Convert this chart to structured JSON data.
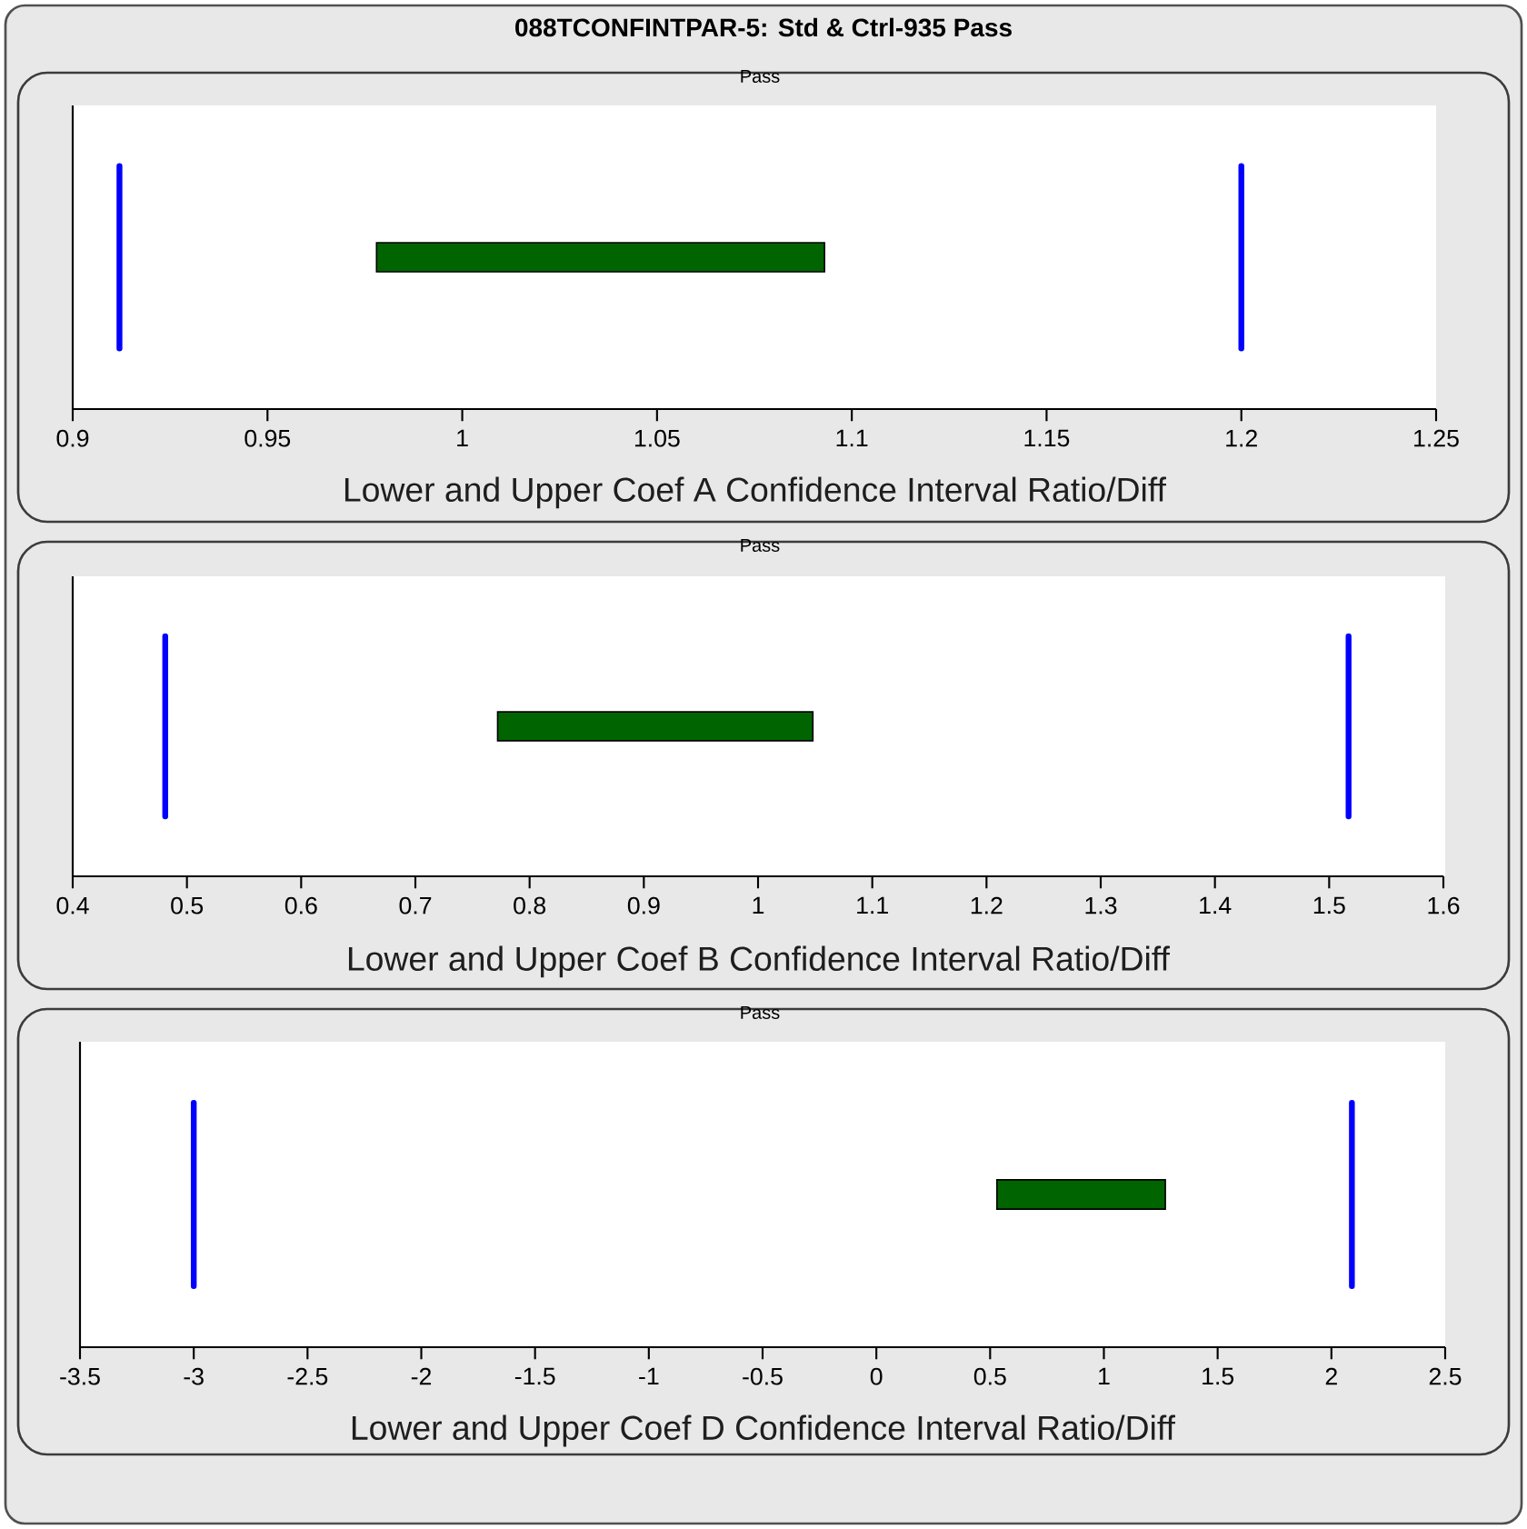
{
  "chart_data": [
    {
      "type": "bar",
      "orientation": "horizontal",
      "title": "088TCONFINTPAR-5: Std & Ctrl-935 Pass",
      "subtitle": "Pass",
      "xlabel": "Lower and Upper Coef A Confidence Interval Ratio/Diff",
      "categories": [
        null
      ],
      "base": [
        0.978
      ],
      "values": [
        0.115
      ],
      "color": "#006400",
      "xlim": [
        0.9,
        1.25
      ],
      "xticks": [
        0.9,
        0.95,
        1,
        1.05,
        1.1,
        1.15,
        1.2,
        1.25
      ],
      "tick_labels": "x",
      "ref_lines": [
        {
          "axis": "x",
          "value": 0.912,
          "color": "#0000ff"
        },
        {
          "axis": "x",
          "value": 1.2,
          "color": "#0000ff"
        }
      ]
    },
    {
      "type": "bar",
      "orientation": "horizontal",
      "subtitle": "Pass",
      "xlabel": "Lower and Upper Coef B Confidence Interval Ratio/Diff",
      "categories": [
        null
      ],
      "base": [
        0.772
      ],
      "values": [
        0.276
      ],
      "color": "#006400",
      "xlim": [
        0.4,
        1.6
      ],
      "xticks": [
        0.4,
        0.5,
        0.6,
        0.7,
        0.8,
        0.9,
        1,
        1.1,
        1.2,
        1.3,
        1.4,
        1.5,
        1.6
      ],
      "tick_labels": "x",
      "ref_lines": [
        {
          "axis": "x",
          "value": 0.481,
          "color": "#0000ff"
        },
        {
          "axis": "x",
          "value": 1.517,
          "color": "#0000ff"
        }
      ]
    },
    {
      "type": "bar",
      "orientation": "horizontal",
      "subtitle": "Pass",
      "xlabel": "Lower and Upper Coef D Confidence Interval Ratio/Diff",
      "categories": [
        null
      ],
      "base": [
        0.53
      ],
      "values": [
        0.74
      ],
      "color": "#006400",
      "xlim": [
        -3.5,
        2.5
      ],
      "xticks": [
        -3.5,
        -3,
        -2.5,
        -2,
        -1.5,
        -1,
        -0.5,
        0,
        0.5,
        1,
        1.5,
        2,
        2.5
      ],
      "tick_labels": "x",
      "ref_lines": [
        {
          "axis": "x",
          "value": -3,
          "color": "#0000ff"
        },
        {
          "axis": "x",
          "value": 2.09,
          "color": "#0000ff"
        }
      ]
    }
  ]
}
